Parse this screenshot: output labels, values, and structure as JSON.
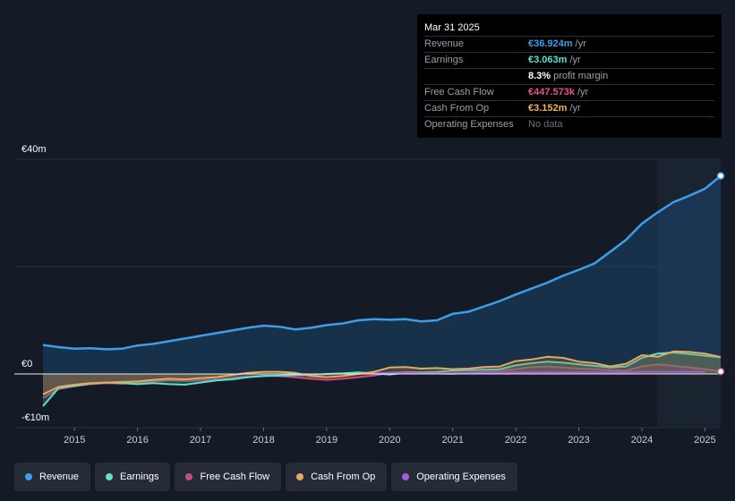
{
  "tooltip": {
    "date": "Mar 31 2025",
    "rows": [
      {
        "label": "Revenue",
        "value": "€36.924m",
        "unit": "/yr",
        "color": "#3d9ee8"
      },
      {
        "label": "Earnings",
        "value": "€3.063m",
        "unit": "/yr",
        "color": "#5de0d0"
      },
      {
        "label": "",
        "value": "8.3%",
        "unit": "profit margin",
        "color": "#ffffff"
      },
      {
        "label": "Free Cash Flow",
        "value": "€447.573k",
        "unit": "/yr",
        "color": "#e2558f"
      },
      {
        "label": "Cash From Op",
        "value": "€3.152m",
        "unit": "/yr",
        "color": "#f0b35a"
      },
      {
        "label": "Operating Expenses",
        "value": "No data",
        "unit": "",
        "color": "#6b7079"
      }
    ]
  },
  "legend": [
    {
      "label": "Revenue",
      "color": "#3d9ee8"
    },
    {
      "label": "Earnings",
      "color": "#5de0d0"
    },
    {
      "label": "Free Cash Flow",
      "color": "#c4507e"
    },
    {
      "label": "Cash From Op",
      "color": "#e8a95a"
    },
    {
      "label": "Operating Expenses",
      "color": "#a45de0"
    }
  ],
  "chart_data": {
    "type": "line",
    "y_labels": [
      "€40m",
      "€0",
      "-€10m"
    ],
    "ylim": [
      -10,
      40
    ],
    "xlim": [
      2014.5,
      2025.25
    ],
    "x_ticks": [
      2015,
      2016,
      2017,
      2018,
      2019,
      2020,
      2021,
      2022,
      2023,
      2024,
      2025
    ],
    "x_tick_labels": [
      "2015",
      "2016",
      "2017",
      "2018",
      "2019",
      "2020",
      "2021",
      "2022",
      "2023",
      "2024",
      "2025"
    ],
    "highlight_from": 2024.25,
    "grid": true,
    "series": [
      {
        "name": "Revenue",
        "color": "#3d9ee8",
        "fill": true,
        "x": [
          2014.5,
          2014.75,
          2015.0,
          2015.25,
          2015.5,
          2015.75,
          2016.0,
          2016.25,
          2016.5,
          2016.75,
          2017.0,
          2017.25,
          2017.5,
          2017.75,
          2018.0,
          2018.25,
          2018.5,
          2018.75,
          2019.0,
          2019.25,
          2019.5,
          2019.75,
          2020.0,
          2020.25,
          2020.5,
          2020.75,
          2021.0,
          2021.25,
          2021.5,
          2021.75,
          2022.0,
          2022.25,
          2022.5,
          2022.75,
          2023.0,
          2023.25,
          2023.5,
          2023.75,
          2024.0,
          2024.25,
          2024.5,
          2024.75,
          2025.0,
          2025.25
        ],
        "y": [
          5.4,
          5.0,
          4.7,
          4.8,
          4.6,
          4.7,
          5.3,
          5.6,
          6.1,
          6.6,
          7.1,
          7.6,
          8.1,
          8.6,
          9.0,
          8.8,
          8.3,
          8.6,
          9.1,
          9.4,
          10.0,
          10.2,
          10.1,
          10.2,
          9.8,
          10.0,
          11.2,
          11.6,
          12.6,
          13.6,
          14.8,
          15.9,
          17.0,
          18.3,
          19.4,
          20.6,
          22.8,
          25.0,
          28.0,
          30.1,
          32.0,
          33.2,
          34.5,
          36.9
        ]
      },
      {
        "name": "Earnings",
        "color": "#5de0d0",
        "fill": true,
        "x": [
          2014.5,
          2014.75,
          2015.0,
          2015.25,
          2015.5,
          2015.75,
          2016.0,
          2016.25,
          2016.5,
          2016.75,
          2017.0,
          2017.25,
          2017.5,
          2017.75,
          2018.0,
          2018.25,
          2018.5,
          2018.75,
          2019.0,
          2019.25,
          2019.5,
          2019.75,
          2020.0,
          2020.25,
          2020.5,
          2020.75,
          2021.0,
          2021.25,
          2021.5,
          2021.75,
          2022.0,
          2022.25,
          2022.5,
          2022.75,
          2023.0,
          2023.25,
          2023.5,
          2023.75,
          2024.0,
          2024.25,
          2024.5,
          2024.75,
          2025.0,
          2025.25
        ],
        "y": [
          -6.0,
          -2.6,
          -2.2,
          -1.8,
          -1.6,
          -1.7,
          -1.9,
          -1.7,
          -1.9,
          -2.0,
          -1.6,
          -1.2,
          -1.0,
          -0.6,
          -0.4,
          -0.3,
          -0.2,
          -0.2,
          0.0,
          0.1,
          0.3,
          0.1,
          -0.1,
          0.2,
          0.3,
          0.4,
          0.6,
          0.7,
          0.8,
          0.9,
          1.6,
          2.0,
          2.3,
          2.1,
          1.8,
          1.5,
          1.2,
          1.4,
          3.0,
          3.8,
          4.0,
          3.7,
          3.4,
          3.1
        ]
      },
      {
        "name": "Free Cash Flow",
        "color": "#c4507e",
        "fill": true,
        "x": [
          2014.5,
          2014.75,
          2015.0,
          2015.25,
          2015.5,
          2015.75,
          2016.0,
          2016.25,
          2016.5,
          2016.75,
          2017.0,
          2017.25,
          2017.5,
          2017.75,
          2018.0,
          2018.25,
          2018.5,
          2018.75,
          2019.0,
          2019.25,
          2019.5,
          2019.75,
          2020.0,
          2020.25,
          2020.5,
          2020.75,
          2021.0,
          2021.25,
          2021.5,
          2021.75,
          2022.0,
          2022.25,
          2022.5,
          2022.75,
          2023.0,
          2023.25,
          2023.5,
          2023.75,
          2024.0,
          2024.25,
          2024.5,
          2024.75,
          2025.0,
          2025.25
        ],
        "y": [
          -4.5,
          -2.8,
          -2.3,
          -1.9,
          -1.7,
          -1.8,
          -1.6,
          -1.4,
          -1.2,
          -1.3,
          -1.2,
          -1.0,
          -0.7,
          -0.5,
          -0.3,
          -0.4,
          -0.6,
          -0.9,
          -1.1,
          -0.9,
          -0.6,
          -0.3,
          0.2,
          0.4,
          0.3,
          0.1,
          0.0,
          0.2,
          0.4,
          0.6,
          0.9,
          1.3,
          1.4,
          1.2,
          1.0,
          0.9,
          0.7,
          0.6,
          1.4,
          1.8,
          1.5,
          1.2,
          0.9,
          0.45
        ]
      },
      {
        "name": "Cash From Op",
        "color": "#e8a95a",
        "fill": true,
        "x": [
          2014.5,
          2014.75,
          2015.0,
          2015.25,
          2015.5,
          2015.75,
          2016.0,
          2016.25,
          2016.5,
          2016.75,
          2017.0,
          2017.25,
          2017.5,
          2017.75,
          2018.0,
          2018.25,
          2018.5,
          2018.75,
          2019.0,
          2019.25,
          2019.5,
          2019.75,
          2020.0,
          2020.25,
          2020.5,
          2020.75,
          2021.0,
          2021.25,
          2021.5,
          2021.75,
          2022.0,
          2022.25,
          2022.5,
          2022.75,
          2023.0,
          2023.25,
          2023.5,
          2023.75,
          2024.0,
          2024.25,
          2024.5,
          2024.75,
          2025.0,
          2025.25
        ],
        "y": [
          -3.8,
          -2.4,
          -2.0,
          -1.7,
          -1.6,
          -1.5,
          -1.4,
          -1.1,
          -0.9,
          -1.0,
          -0.8,
          -0.6,
          -0.2,
          0.2,
          0.4,
          0.4,
          0.2,
          -0.4,
          -0.6,
          -0.4,
          0.0,
          0.4,
          1.2,
          1.3,
          1.0,
          1.1,
          0.9,
          1.0,
          1.3,
          1.4,
          2.4,
          2.7,
          3.2,
          3.0,
          2.3,
          2.0,
          1.4,
          1.9,
          3.5,
          3.2,
          4.2,
          4.1,
          3.8,
          3.15
        ]
      },
      {
        "name": "Operating Expenses",
        "color": "#a45de0",
        "fill": false,
        "x": [
          2019.75,
          2020.0,
          2020.25,
          2020.5,
          2020.75,
          2021.0,
          2021.25,
          2021.5,
          2021.75,
          2022.0,
          2022.25,
          2022.5,
          2022.75,
          2023.0,
          2023.25,
          2023.5,
          2023.75,
          2024.0,
          2024.25,
          2024.5,
          2024.75,
          2025.0
        ],
        "y": [
          0.1,
          0.2,
          0.2,
          0.1,
          0.1,
          0.1,
          0.2,
          0.2,
          0.2,
          0.3,
          0.3,
          0.3,
          0.3,
          0.3,
          0.3,
          0.3,
          0.3,
          0.4,
          0.4,
          0.4,
          0.4,
          0.4
        ]
      }
    ]
  }
}
